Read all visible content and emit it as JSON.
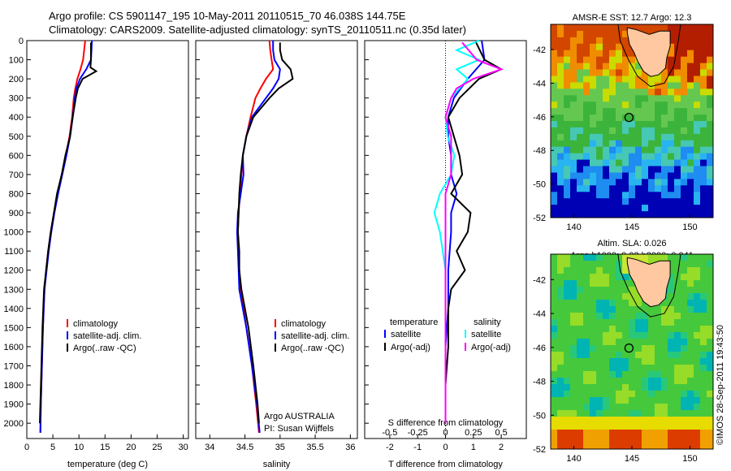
{
  "header": {
    "line1": "Argo profile: CS 5901147_195 10-May-2011 20110515_70 46.038S 144.75E",
    "line2": "Climatology: CARS2009. Satellite-adjusted climatology: synTS_20110511.nc (0.35d later)"
  },
  "colors": {
    "climatology": "#ff0000",
    "satellite": "#0000ff",
    "argo": "#000000",
    "satellite_salinity": "#00ffff",
    "argo_adj_salinity": "#ff00ff",
    "land": "#ffc8a0"
  },
  "chart_data": [
    {
      "type": "line",
      "panel": "temperature",
      "xlabel": "temperature (deg C)",
      "ylabel": "",
      "xlim": [
        0,
        31
      ],
      "ylim": [
        2080,
        0
      ],
      "xticks": [
        "0",
        "5",
        "10",
        "15",
        "20",
        "25",
        "30"
      ],
      "yticks": [
        "0",
        "100",
        "200",
        "300",
        "400",
        "500",
        "600",
        "700",
        "800",
        "900",
        "1000",
        "1100",
        "1200",
        "1300",
        "1400",
        "1500",
        "1600",
        "1700",
        "1800",
        "1900",
        "2000"
      ],
      "legend": [
        "climatology",
        "satellite-adj. clim.",
        "Argo(..raw -QC)"
      ],
      "series": [
        {
          "name": "climatology",
          "depth": [
            0,
            50,
            100,
            150,
            200,
            250,
            300,
            400,
            500,
            600,
            700,
            800,
            900,
            1000,
            1100,
            1200,
            1300,
            1500,
            1700,
            1900,
            2050
          ],
          "values": [
            11.2,
            11.0,
            10.8,
            10.3,
            9.7,
            9.3,
            9.0,
            8.7,
            8.2,
            7.5,
            6.7,
            5.9,
            5.2,
            4.6,
            4.1,
            3.7,
            3.4,
            3.1,
            2.9,
            2.7,
            2.6
          ]
        },
        {
          "name": "satellite-adj. clim.",
          "depth": [
            0,
            50,
            100,
            150,
            200,
            250,
            300,
            400,
            500,
            600,
            700,
            800,
            900,
            1000,
            1100,
            1200,
            1300,
            1500,
            1700,
            1900,
            2050
          ],
          "values": [
            12.5,
            12.4,
            12.3,
            11.4,
            10.2,
            9.5,
            9.2,
            8.8,
            8.3,
            7.6,
            6.8,
            6.0,
            5.3,
            4.7,
            4.2,
            3.8,
            3.4,
            3.1,
            2.9,
            2.7,
            2.6
          ]
        },
        {
          "name": "Argo(..raw -QC)",
          "depth": [
            10,
            50,
            100,
            140,
            160,
            200,
            250,
            300,
            400,
            500,
            600,
            700,
            800,
            900,
            1000,
            1100,
            1200,
            1300,
            1500,
            1700,
            1900,
            2000
          ],
          "values": [
            12.3,
            12.3,
            12.3,
            12.2,
            13.3,
            10.7,
            9.8,
            9.4,
            8.8,
            8.3,
            7.4,
            6.7,
            5.8,
            5.2,
            4.6,
            4.1,
            3.7,
            3.3,
            3.0,
            2.8,
            2.6,
            2.5
          ]
        }
      ]
    },
    {
      "type": "line",
      "panel": "salinity",
      "xlabel": "salinity",
      "ylabel": "",
      "xlim": [
        33.8,
        36.1
      ],
      "ylim": [
        2080,
        0
      ],
      "xticks": [
        "34",
        "34.5",
        "35",
        "35.5",
        "36"
      ],
      "legend": [
        "climatology",
        "satellite-adj. clim.",
        "Argo(..raw -QC)"
      ],
      "annotations": [
        "Argo AUSTRALIA",
        "PI: Susan Wijffels"
      ],
      "series": [
        {
          "name": "climatology",
          "depth": [
            0,
            50,
            100,
            150,
            200,
            250,
            300,
            400,
            500,
            600,
            700,
            800,
            900,
            1000,
            1100,
            1200,
            1300,
            1500,
            1700,
            1900,
            2050
          ],
          "values": [
            34.85,
            34.86,
            34.88,
            34.9,
            34.8,
            34.72,
            34.65,
            34.58,
            34.52,
            34.47,
            34.45,
            34.43,
            34.41,
            34.4,
            34.41,
            34.42,
            34.44,
            34.52,
            34.6,
            34.66,
            34.7
          ]
        },
        {
          "name": "satellite-adj. clim.",
          "depth": [
            0,
            50,
            100,
            150,
            200,
            250,
            300,
            400,
            500,
            600,
            700,
            800,
            900,
            1000,
            1100,
            1200,
            1300,
            1500,
            1700,
            1900,
            2050
          ],
          "values": [
            34.9,
            34.9,
            34.92,
            35.0,
            34.98,
            34.9,
            34.8,
            34.6,
            34.52,
            34.47,
            34.48,
            34.44,
            34.4,
            34.39,
            34.4,
            34.41,
            34.42,
            34.52,
            34.6,
            34.67,
            34.71
          ]
        },
        {
          "name": "Argo(..raw -QC)",
          "depth": [
            10,
            50,
            100,
            150,
            200,
            250,
            300,
            400,
            500,
            600,
            700,
            800,
            900,
            1000,
            1100,
            1200,
            1300,
            1500,
            1700,
            1900,
            2000
          ],
          "values": [
            35.0,
            35.0,
            35.03,
            35.15,
            35.18,
            34.98,
            34.85,
            34.62,
            34.52,
            34.47,
            34.44,
            34.42,
            34.41,
            34.4,
            34.42,
            34.42,
            34.45,
            34.55,
            34.62,
            34.68,
            34.7
          ]
        }
      ]
    },
    {
      "type": "line",
      "panel": "differences",
      "xlabel": "T difference from climatology",
      "xlabel2": "S difference from climatology",
      "xlim": [
        -2.9,
        2.9
      ],
      "ylim": [
        2080,
        0
      ],
      "xticks": [
        "-2",
        "-1",
        "0",
        "1",
        "2"
      ],
      "xticks2": [
        "-0.5",
        "-0.25",
        "0",
        "0.25",
        "0.5"
      ],
      "legend_headers": [
        "temperature",
        "salinity"
      ],
      "legend": [
        "satellite",
        "Argo(-adj)",
        "satellite",
        "Argo(-adj)"
      ],
      "series": [
        {
          "name": "temperature satellite",
          "depth": [
            0,
            100,
            200,
            300,
            400,
            500,
            600,
            700,
            800,
            900,
            1000,
            1200,
            1400,
            1600,
            1800,
            2000
          ],
          "values": [
            1.3,
            1.4,
            0.8,
            0.3,
            0.1,
            0.1,
            0.2,
            0.2,
            0.4,
            0.2,
            0.2,
            0.1,
            0.1,
            0.0,
            0.0,
            0.0
          ]
        },
        {
          "name": "temperature Argo(-adj)",
          "depth": [
            10,
            100,
            150,
            200,
            300,
            400,
            500,
            600,
            700,
            800,
            900,
            1000,
            1100,
            1200,
            1300,
            1400,
            1600,
            1800,
            2000
          ],
          "values": [
            1.1,
            1.4,
            2.0,
            1.2,
            0.5,
            0.1,
            0.3,
            0.5,
            0.6,
            0.2,
            0.9,
            0.8,
            0.4,
            0.7,
            0.2,
            0.1,
            0.1,
            0.0,
            0.0
          ]
        },
        {
          "name": "salinity satellite",
          "depth": [
            0,
            50,
            100,
            150,
            200,
            300,
            400,
            500,
            600,
            700,
            800,
            900,
            1000,
            1200,
            1400,
            1600,
            1800,
            2000
          ],
          "values": [
            0.3,
            0.1,
            0.3,
            0.1,
            0.2,
            0.05,
            0.0,
            0.02,
            0.08,
            0.05,
            -0.05,
            -0.1,
            -0.05,
            0.0,
            0.0,
            0.0,
            0.0,
            0.0
          ]
        },
        {
          "name": "salinity Argo(-adj)",
          "depth": [
            10,
            100,
            150,
            200,
            250,
            300,
            400,
            500,
            600,
            700,
            800,
            900,
            1000,
            1200,
            1400,
            1600,
            1800,
            2000
          ],
          "values": [
            0.15,
            0.28,
            0.5,
            0.25,
            0.1,
            0.05,
            0.0,
            0.05,
            0.05,
            0.05,
            0.0,
            0.0,
            0.0,
            0.0,
            0.0,
            0.0,
            0.0,
            0.0
          ]
        }
      ]
    },
    {
      "type": "heatmap",
      "panel": "sst-map",
      "title": "AMSR-E SST: 12.7 Argo: 12.3",
      "xlim": [
        138,
        152
      ],
      "ylim": [
        -52,
        -40.5
      ],
      "xticks": [
        "140",
        "145",
        "150"
      ],
      "yticks": [
        "-42",
        "-44",
        "-46",
        "-48",
        "-50",
        "-52"
      ],
      "marker": [
        144.75,
        -46.04
      ]
    },
    {
      "type": "heatmap",
      "panel": "sla-map",
      "title": "Altim. SLA: 0.026",
      "subtitle": "Argo h1000: 0.03 h2000: 0.041",
      "xlim": [
        138,
        152
      ],
      "ylim": [
        -52,
        -40.5
      ],
      "xticks": [
        "140",
        "145",
        "150"
      ],
      "yticks": [
        "-42",
        "-44",
        "-46",
        "-48",
        "-50",
        "-52"
      ],
      "marker": [
        144.75,
        -46.04
      ]
    }
  ],
  "credit": "©IMOS 28-Sep-2011 19:43:50"
}
